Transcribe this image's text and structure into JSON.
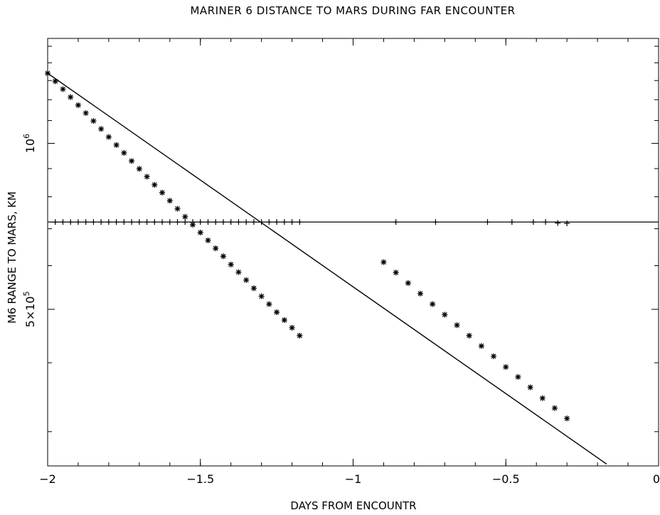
{
  "chart_data": {
    "type": "scatter",
    "title": "MARINER 6 DISTANCE TO MARS DURING FAR ENCOUNTER",
    "xlabel": "DAYS FROM ENCOUNTR",
    "ylabel": "M6 RANGE TO MARS, KM",
    "xlim": [
      -2,
      0
    ],
    "ylim": [
      260000,
      1550000
    ],
    "yscale": "log",
    "grid": false,
    "x_ticks": [
      {
        "value": -2,
        "label": "−2"
      },
      {
        "value": -1.5,
        "label": "−1.5"
      },
      {
        "value": -1,
        "label": "−1"
      },
      {
        "value": -0.5,
        "label": "−0.5"
      },
      {
        "value": 0,
        "label": "0"
      }
    ],
    "y_ticks": [
      {
        "value": 1000000,
        "base": "10",
        "exp": "6"
      },
      {
        "value": 500000,
        "base": "5×10",
        "exp": "5"
      }
    ],
    "fit_line": {
      "x": [
        -2.0,
        -0.17
      ],
      "y": [
        1340000,
        262000
      ]
    },
    "reference_line_y": 720000,
    "series": [
      {
        "marker": "asterisk",
        "x": [
          -2.0,
          -1.975,
          -1.95,
          -1.925,
          -1.9,
          -1.875,
          -1.85,
          -1.825,
          -1.8,
          -1.775,
          -1.75,
          -1.725,
          -1.7,
          -1.675,
          -1.65,
          -1.625,
          -1.6,
          -1.575,
          -1.55,
          -1.525,
          -1.5,
          -1.475,
          -1.45,
          -1.425,
          -1.4,
          -1.375,
          -1.35,
          -1.325,
          -1.3,
          -1.275,
          -1.25,
          -1.225,
          -1.2,
          -1.175,
          -0.9,
          -0.86,
          -0.82,
          -0.78,
          -0.74,
          -0.7,
          -0.66,
          -0.62,
          -0.58,
          -0.54,
          -0.5,
          -0.46,
          -0.42,
          -0.38,
          -0.34,
          -0.3
        ],
        "y": [
          1340000,
          1296000,
          1254000,
          1213000,
          1173000,
          1135000,
          1098000,
          1062000,
          1027000,
          993000,
          961000,
          929000,
          899000,
          870000,
          841000,
          814000,
          787000,
          761000,
          736000,
          712000,
          689000,
          667000,
          645000,
          624000,
          603000,
          584000,
          565000,
          546000,
          528000,
          511000,
          494000,
          478000,
          463000,
          448000,
          609000,
          583000,
          558000,
          534000,
          511000,
          489000,
          468000,
          448000,
          429000,
          411000,
          393000,
          377000,
          361000,
          345000,
          331000,
          317000
        ]
      },
      {
        "marker": "plus",
        "x": [
          -1.975,
          -1.95,
          -1.925,
          -1.9,
          -1.875,
          -1.85,
          -1.825,
          -1.8,
          -1.775,
          -1.75,
          -1.725,
          -1.7,
          -1.675,
          -1.65,
          -1.625,
          -1.6,
          -1.575,
          -1.55,
          -1.525,
          -1.5,
          -1.475,
          -1.45,
          -1.425,
          -1.4,
          -1.375,
          -1.35,
          -1.325,
          -1.3,
          -1.275,
          -1.25,
          -1.225,
          -1.2,
          -1.175,
          -0.86,
          -0.73,
          -0.56,
          -0.48,
          -0.41,
          -0.37,
          -0.33,
          -0.3
        ],
        "y": [
          720000,
          720000,
          720000,
          720000,
          720000,
          720000,
          720000,
          720000,
          720000,
          720000,
          720000,
          720000,
          720000,
          720000,
          720000,
          720000,
          720000,
          720000,
          720000,
          720000,
          720000,
          720000,
          720000,
          720000,
          720000,
          720000,
          720000,
          720000,
          720000,
          720000,
          720000,
          720000,
          720000,
          720000,
          720000,
          720000,
          720000,
          720000,
          720000,
          717000,
          716000
        ]
      }
    ]
  }
}
